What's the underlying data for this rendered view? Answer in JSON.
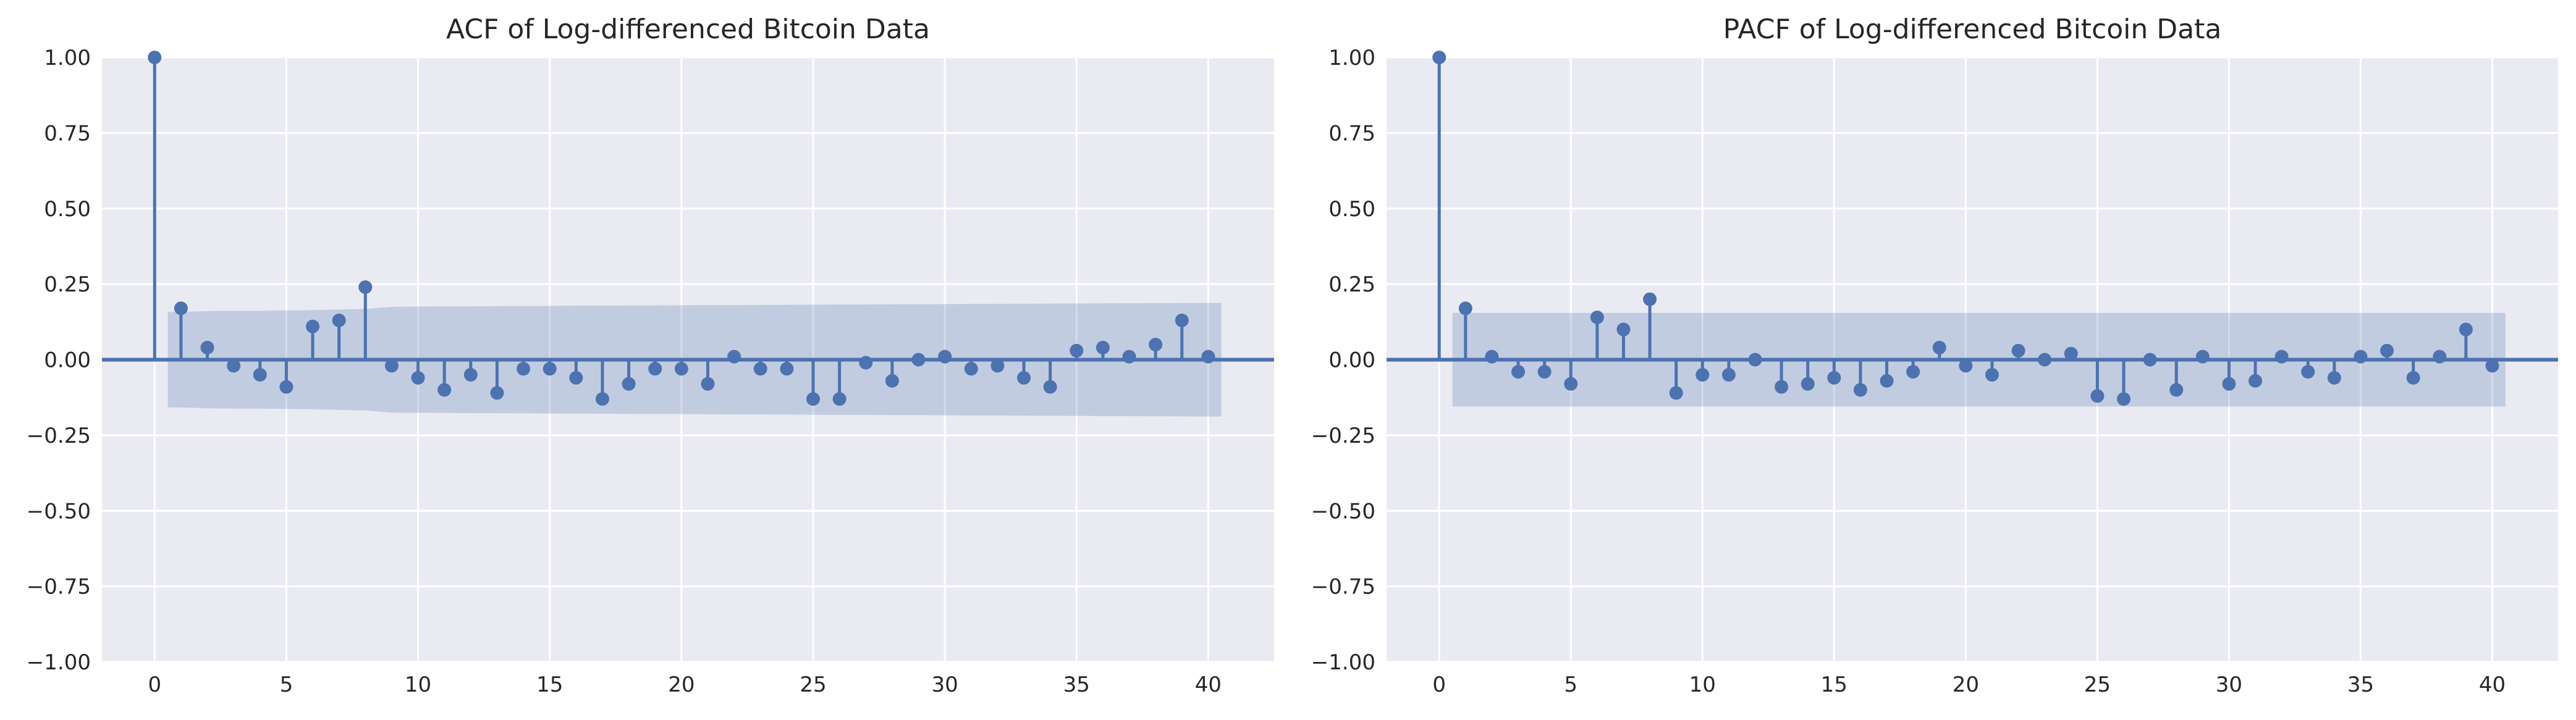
{
  "colors": {
    "plot_background": "#eaeaf2",
    "grid": "#ffffff",
    "series": "#4c72b0",
    "confidence_band": "#4c72b0",
    "text": "#262626"
  },
  "chart_data": [
    {
      "type": "stem",
      "title": "ACF of Log-differenced Bitcoin Data",
      "xlabel": "",
      "ylabel": "",
      "xlim": [
        -2,
        42.5
      ],
      "ylim": [
        -1.0,
        1.0
      ],
      "grid": true,
      "x_ticks": [
        0,
        5,
        10,
        15,
        20,
        25,
        30,
        35,
        40
      ],
      "x_tick_labels": [
        "0",
        "5",
        "10",
        "15",
        "20",
        "25",
        "30",
        "35",
        "40"
      ],
      "y_ticks": [
        1.0,
        0.75,
        0.5,
        0.25,
        0.0,
        -0.25,
        -0.5,
        -0.75,
        -1.0
      ],
      "y_tick_labels": [
        "1.00",
        "0.75",
        "0.50",
        "0.25",
        "0.00",
        "−0.25",
        "−0.50",
        "−0.75",
        "−1.00"
      ],
      "lags": [
        0,
        1,
        2,
        3,
        4,
        5,
        6,
        7,
        8,
        9,
        10,
        11,
        12,
        13,
        14,
        15,
        16,
        17,
        18,
        19,
        20,
        21,
        22,
        23,
        24,
        25,
        26,
        27,
        28,
        29,
        30,
        31,
        32,
        33,
        34,
        35,
        36,
        37,
        38,
        39,
        40
      ],
      "values": [
        1.0,
        0.17,
        0.04,
        -0.02,
        -0.05,
        -0.09,
        0.11,
        0.13,
        0.24,
        -0.02,
        -0.06,
        -0.1,
        -0.05,
        -0.11,
        -0.03,
        -0.03,
        -0.06,
        -0.13,
        -0.08,
        -0.03,
        -0.03,
        -0.08,
        0.01,
        -0.03,
        -0.03,
        -0.13,
        -0.13,
        -0.01,
        -0.07,
        0.0,
        0.01,
        -0.03,
        -0.02,
        -0.06,
        -0.09,
        0.03,
        0.04,
        0.01,
        0.05,
        0.13,
        0.01
      ],
      "confidence_band": {
        "lags": [
          0.5,
          1,
          2,
          3,
          4,
          5,
          6,
          7,
          8,
          9,
          10,
          15,
          20,
          25,
          30,
          35,
          40,
          40.5
        ],
        "upper": [
          0.158,
          0.158,
          0.161,
          0.162,
          0.162,
          0.163,
          0.164,
          0.166,
          0.168,
          0.175,
          0.176,
          0.178,
          0.18,
          0.182,
          0.184,
          0.186,
          0.188,
          0.188
        ]
      }
    },
    {
      "type": "stem",
      "title": "PACF of Log-differenced Bitcoin Data",
      "xlabel": "",
      "ylabel": "",
      "xlim": [
        -2,
        42.5
      ],
      "ylim": [
        -1.0,
        1.0
      ],
      "grid": true,
      "x_ticks": [
        0,
        5,
        10,
        15,
        20,
        25,
        30,
        35,
        40
      ],
      "x_tick_labels": [
        "0",
        "5",
        "10",
        "15",
        "20",
        "25",
        "30",
        "35",
        "40"
      ],
      "y_ticks": [
        1.0,
        0.75,
        0.5,
        0.25,
        0.0,
        -0.25,
        -0.5,
        -0.75,
        -1.0
      ],
      "y_tick_labels": [
        "1.00",
        "0.75",
        "0.50",
        "0.25",
        "0.00",
        "−0.25",
        "−0.50",
        "−0.75",
        "−1.00"
      ],
      "lags": [
        0,
        1,
        2,
        3,
        4,
        5,
        6,
        7,
        8,
        9,
        10,
        11,
        12,
        13,
        14,
        15,
        16,
        17,
        18,
        19,
        20,
        21,
        22,
        23,
        24,
        25,
        26,
        27,
        28,
        29,
        30,
        31,
        32,
        33,
        34,
        35,
        36,
        37,
        38,
        39,
        40
      ],
      "values": [
        1.0,
        0.17,
        0.01,
        -0.04,
        -0.04,
        -0.08,
        0.14,
        0.1,
        0.2,
        -0.11,
        -0.05,
        -0.05,
        0.0,
        -0.09,
        -0.08,
        -0.06,
        -0.1,
        -0.07,
        -0.04,
        0.04,
        -0.02,
        -0.05,
        0.03,
        0.0,
        0.02,
        -0.12,
        -0.13,
        0.0,
        -0.1,
        0.01,
        -0.08,
        -0.07,
        0.01,
        -0.04,
        -0.06,
        0.01,
        0.03,
        -0.06,
        0.01,
        0.1,
        -0.02
      ],
      "confidence_band": {
        "lags": [
          0.5,
          40.5
        ],
        "upper": [
          0.155,
          0.155
        ]
      }
    }
  ]
}
